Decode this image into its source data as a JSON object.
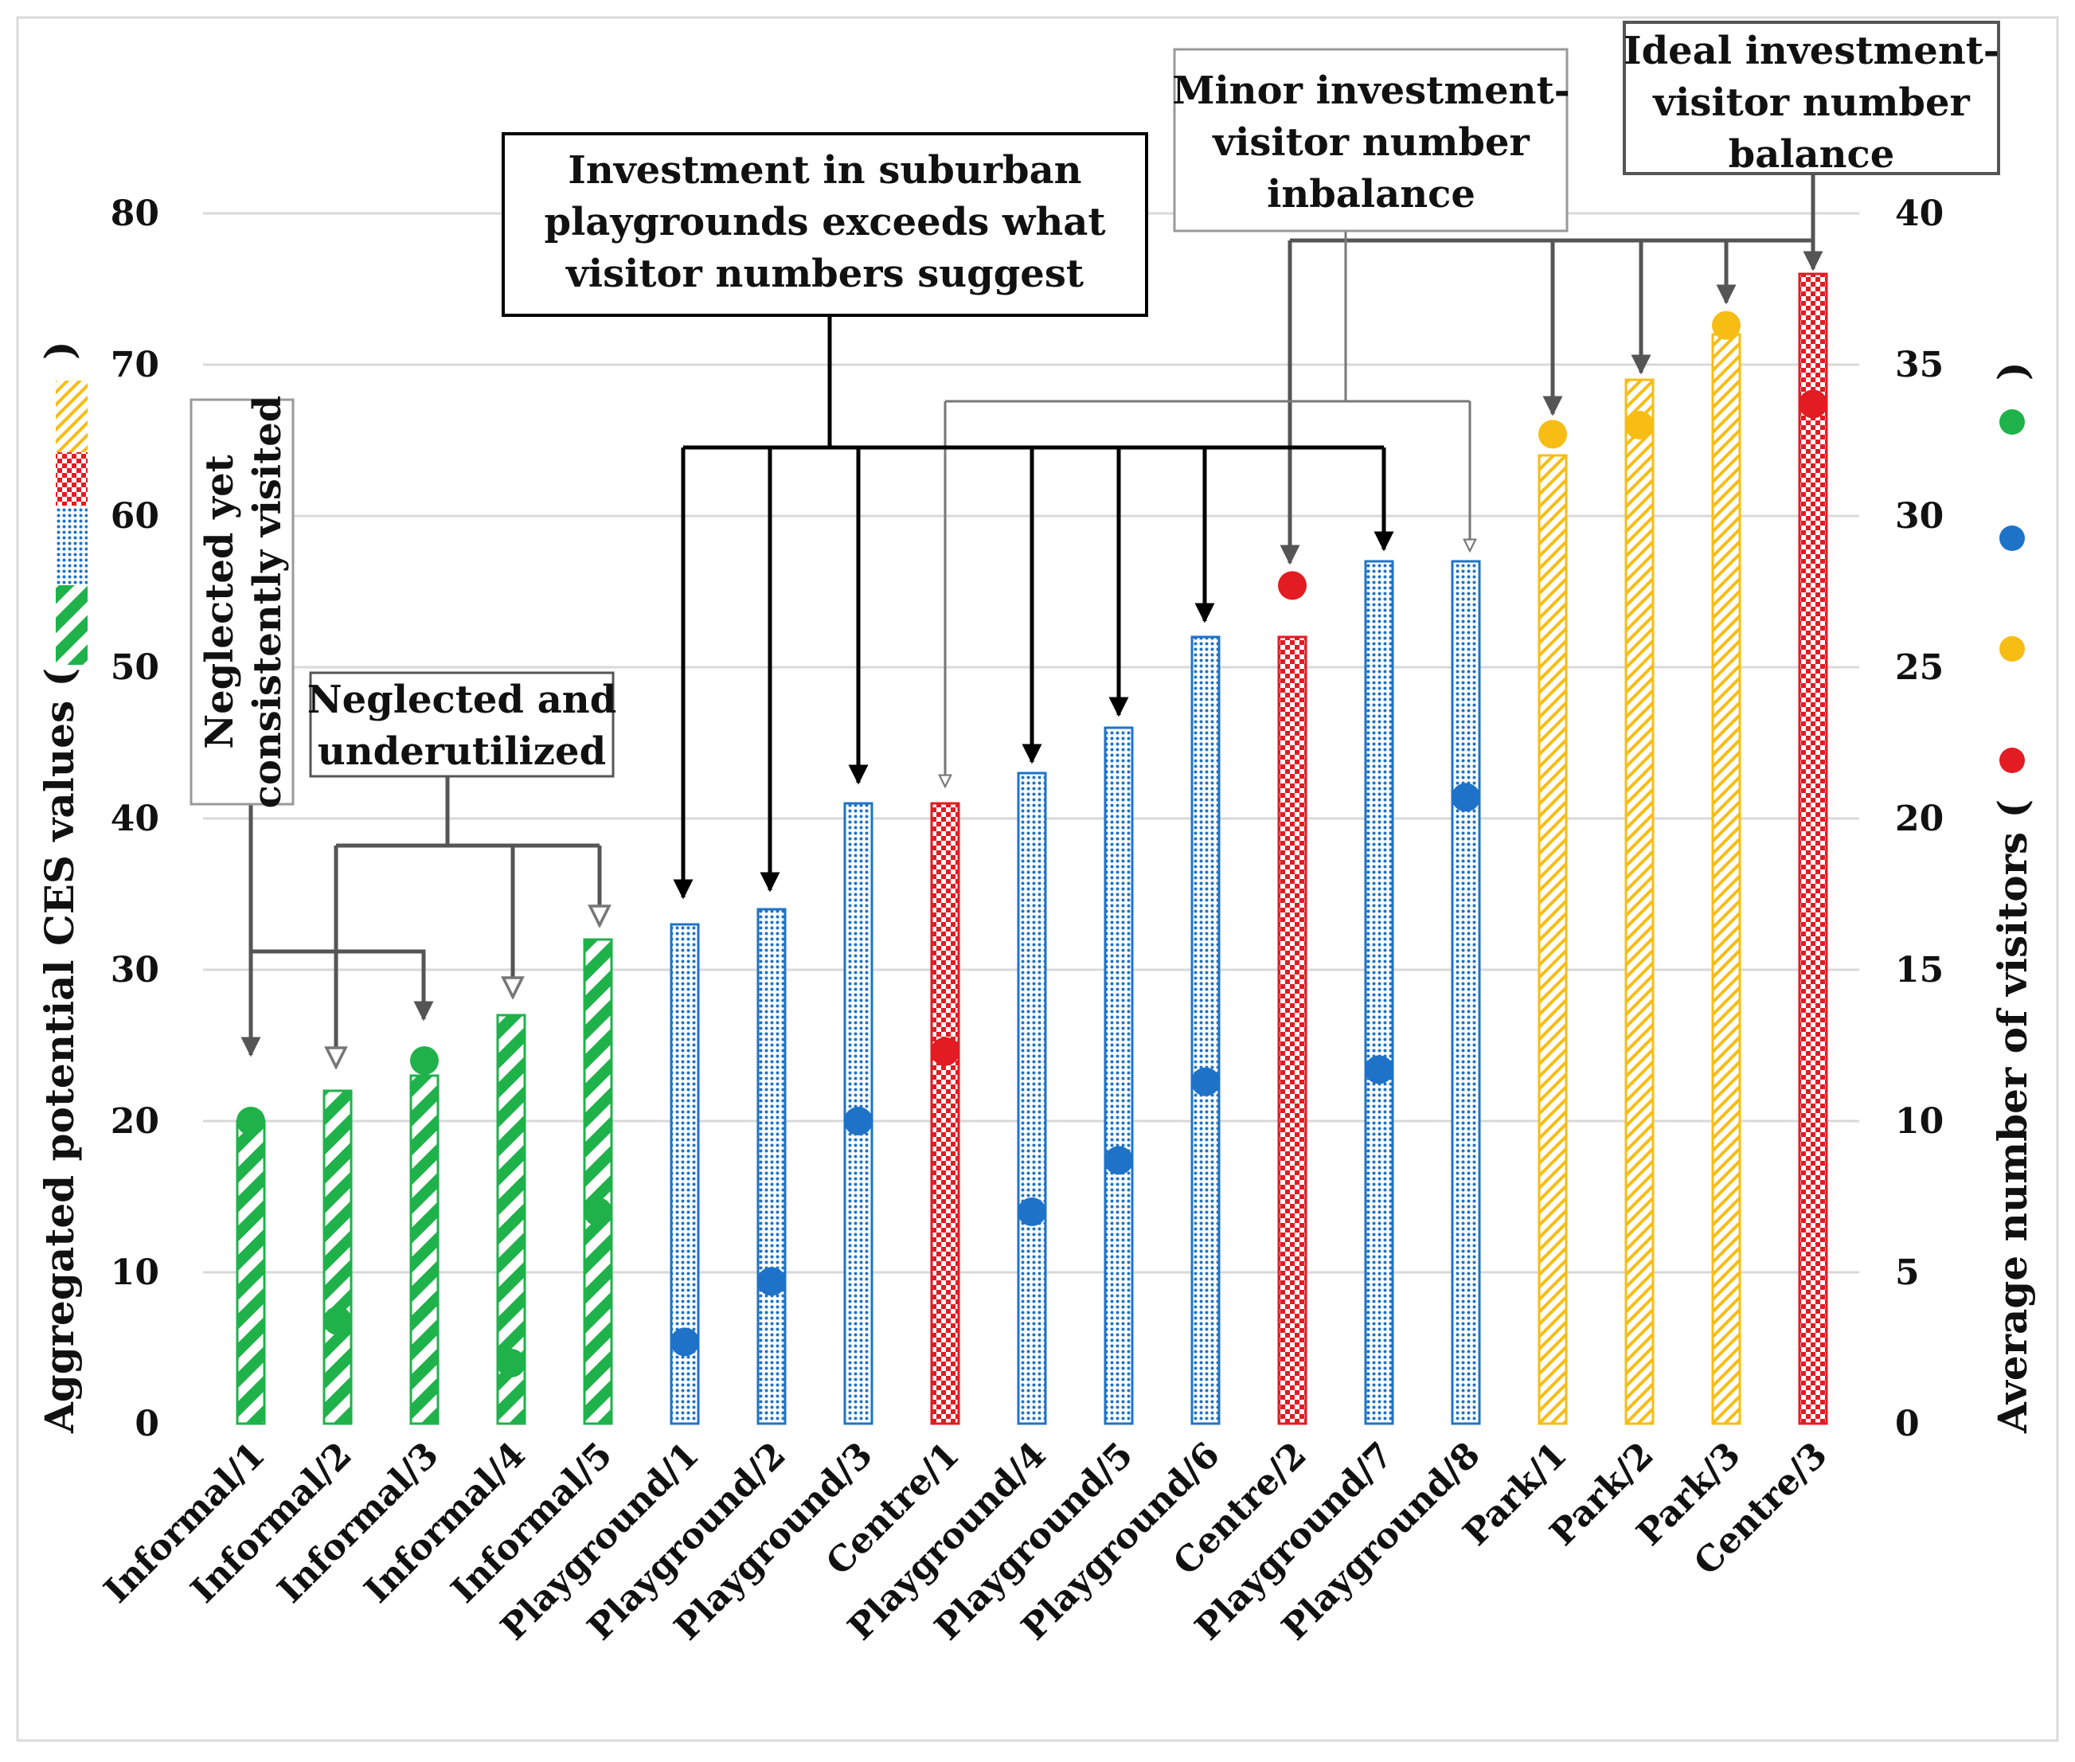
{
  "chart_data": {
    "type": "bar",
    "categories": [
      "Informal/1",
      "Informal/2",
      "Informal/3",
      "Informal/4",
      "Informal/5",
      "Playground/1",
      "Playground/2",
      "Playground/3",
      "Centre/1",
      "Playground/4",
      "Playground/5",
      "Playground/6",
      "Centre/2",
      "Playground/7",
      "Playground/8",
      "Park/1",
      "Park/2",
      "Park/3",
      "Centre/3"
    ],
    "groups": [
      "informal",
      "informal",
      "informal",
      "informal",
      "informal",
      "playground",
      "playground",
      "playground",
      "centre",
      "playground",
      "playground",
      "playground",
      "centre",
      "playground",
      "playground",
      "park",
      "park",
      "park",
      "centre"
    ],
    "series": [
      {
        "name": "Aggregated potential CES values",
        "axis": "left",
        "kind": "bar",
        "values": [
          20,
          22,
          23,
          27,
          32,
          33,
          34,
          41,
          41,
          43,
          46,
          52,
          52,
          57,
          57,
          64,
          69,
          72,
          76
        ]
      },
      {
        "name": "Average number of visitors",
        "axis": "right",
        "kind": "dot",
        "values": [
          10,
          3.4,
          12,
          2,
          7,
          2.7,
          4.7,
          10,
          12.3,
          7,
          8.7,
          11.3,
          27.7,
          11.7,
          20.7,
          32.7,
          33,
          36.3,
          33.7
        ]
      }
    ],
    "group_colors": {
      "informal": "#1fb24a",
      "playground": "#1e73c8",
      "centre": "#e31b23",
      "park": "#f7bd14"
    },
    "y_left": {
      "label": "Aggregated potential CES values (",
      "label_close": ")",
      "range": [
        0,
        80
      ],
      "ticks": [
        "0",
        "10",
        "20",
        "30",
        "40",
        "50",
        "60",
        "70",
        "80"
      ]
    },
    "y_right": {
      "label": "Average number of visitors (",
      "label_close": ")",
      "range": [
        0,
        40
      ],
      "ticks": [
        "0",
        "5",
        "10",
        "15",
        "20",
        "25",
        "30",
        "35",
        "40"
      ]
    },
    "grid": true,
    "annotations": [
      {
        "id": "investment",
        "lines": [
          "Investment in suburban",
          "playgrounds exceeds what",
          "visitor numbers suggest"
        ]
      },
      {
        "id": "minor",
        "lines": [
          "Minor investment-",
          "visitor number",
          "inbalance"
        ]
      },
      {
        "id": "ideal",
        "lines": [
          "Ideal investment-",
          "visitor number",
          "balance"
        ]
      },
      {
        "id": "underutilized",
        "lines": [
          "Neglected and",
          "underutilized"
        ]
      },
      {
        "id": "consistently",
        "lines": [
          "Neglected yet",
          "consistently visited"
        ]
      }
    ]
  }
}
